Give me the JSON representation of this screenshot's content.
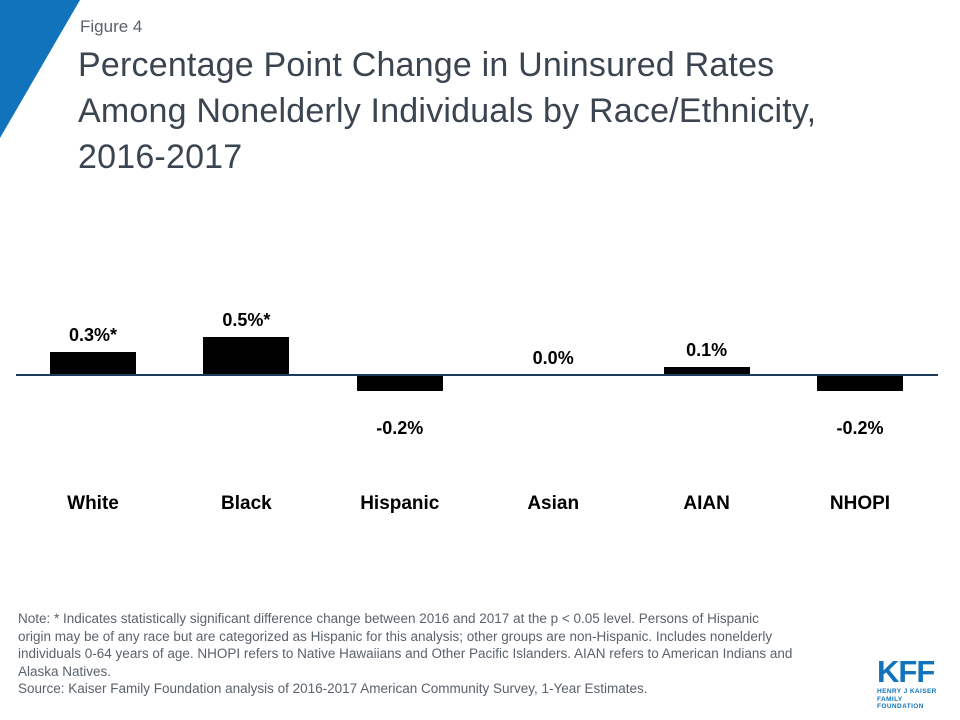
{
  "slide": {
    "figure_label": "Figure 4",
    "title": "Percentage Point Change in Uninsured Rates Among Nonelderly Individuals by Race/Ethnicity, 2016-2017",
    "title_lines": [
      "Percentage Point Change in Uninsured Rates",
      "Among Nonelderly Individuals by Race/Ethnicity,",
      "2016-2017"
    ]
  },
  "chart_data": {
    "type": "bar",
    "categories": [
      "White",
      "Black",
      "Hispanic",
      "Asian",
      "AIAN",
      "NHOPI"
    ],
    "values": [
      0.3,
      0.5,
      -0.2,
      0.0,
      0.1,
      -0.2
    ],
    "labels": [
      "0.3%*",
      "0.5%*",
      "-0.2%",
      "0.0%",
      "0.1%",
      "-0.2%"
    ],
    "title": "Percentage Point Change in Uninsured Rates Among Nonelderly Individuals by Race/Ethnicity, 2016-2017",
    "xlabel": "",
    "ylabel": "",
    "ylim": [
      -0.6,
      0.6
    ],
    "grid": false,
    "legend": false,
    "bar_color": "#000000",
    "axis_line_color": "#1B3A5C"
  },
  "footnote": {
    "note_lines": [
      "Note: * Indicates statistically significant difference change between 2016 and 2017 at the p < 0.05 level. Persons of Hispanic",
      "origin may be of any race but are categorized as Hispanic for this analysis; other groups are non-Hispanic. Includes nonelderly",
      "individuals 0-64 years of age. NHOPI refers to Native Hawaiians and Other Pacific Islanders. AIAN refers to American Indians and",
      "Alaska Natives."
    ],
    "source": "Source: Kaiser Family Foundation analysis of 2016-2017 American Community Survey, 1-Year Estimates."
  },
  "logo": {
    "text": "KFF",
    "tagline_line1": "HENRY J KAISER",
    "tagline_line2": "FAMILY FOUNDATION"
  },
  "colors": {
    "accent_blue": "#1173BC",
    "title_text": "#3B4551",
    "muted_text": "#5A626B",
    "bar_black": "#000000",
    "axis_line": "#1B3A5C"
  }
}
